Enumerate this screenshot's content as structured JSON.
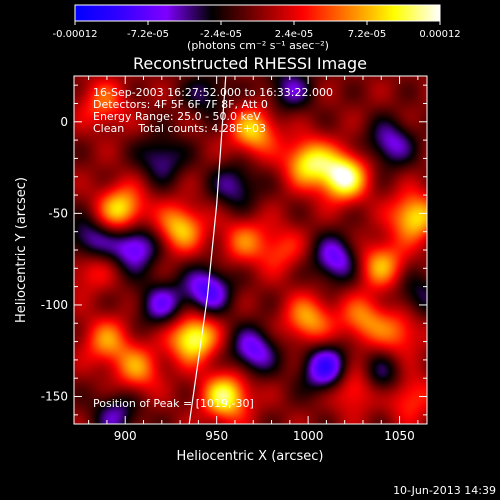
{
  "chart_data": {
    "type": "heatmap",
    "title": "Reconstructed RHESSI Image",
    "xlabel": "Heliocentric X (arcsec)",
    "ylabel": "Heliocentric Y (arcsec)",
    "xlim": [
      872,
      1065
    ],
    "ylim": [
      -165,
      25
    ],
    "x_ticks": [
      900,
      950,
      1000,
      1050
    ],
    "y_ticks": [
      0,
      -50,
      -100,
      -150
    ],
    "colorbar": {
      "label": "(photons cm⁻² s⁻¹ asec⁻²)",
      "ticks": [
        "-0.00012",
        "-7.2e-05",
        "-2.4e-05",
        "2.4e-05",
        "7.2e-05",
        "0.00012"
      ],
      "tick_values": [
        -0.00012,
        -7.2e-05,
        -2.4e-05,
        2.4e-05,
        7.2e-05,
        0.00012
      ],
      "range": [
        -0.00012,
        0.00012
      ],
      "colormap": [
        "#0000ff",
        "#3300ff",
        "#7f00ff",
        "#000000",
        "#7f0000",
        "#ff0000",
        "#ff8000",
        "#ffff00",
        "#ffffff"
      ]
    },
    "annotations": [
      "16-Sep-2003 16:27:52.000 to 16:33:22.000",
      "Detectors: 4F 5F 6F 7F 8F, Att 0",
      "Energy Range: 25.0 - 50.0 keV",
      "Clean    Total counts: 4.28E+03"
    ],
    "peak_label": "Position of Peak = [1019,-30]",
    "peak": [
      1019,
      -30
    ],
    "sources": [
      {
        "x": 1019,
        "y": -30,
        "value": 0.00012
      },
      {
        "x": 1000,
        "y": -22,
        "value": 9e-05
      },
      {
        "x": 970,
        "y": -5,
        "value": 8e-05
      },
      {
        "x": 888,
        "y": 10,
        "value": 5e-05
      },
      {
        "x": 898,
        "y": -48,
        "value": 9e-05
      },
      {
        "x": 930,
        "y": -58,
        "value": 8e-05
      },
      {
        "x": 965,
        "y": -65,
        "value": 5e-05
      },
      {
        "x": 1040,
        "y": -78,
        "value": 7e-05
      },
      {
        "x": 1058,
        "y": -52,
        "value": 9e-05
      },
      {
        "x": 1000,
        "y": -108,
        "value": 7e-05
      },
      {
        "x": 1030,
        "y": -108,
        "value": 6e-05
      },
      {
        "x": 1050,
        "y": -115,
        "value": 5e-05
      },
      {
        "x": 937,
        "y": -118,
        "value": 0.00011
      },
      {
        "x": 890,
        "y": -120,
        "value": 6e-05
      },
      {
        "x": 907,
        "y": -135,
        "value": 6e-05
      },
      {
        "x": 955,
        "y": -150,
        "value": 0.0001
      },
      {
        "x": 1025,
        "y": -145,
        "value": 6e-05
      },
      {
        "x": 1055,
        "y": -150,
        "value": 5e-05
      },
      {
        "x": 880,
        "y": -80,
        "value": 4e-05
      },
      {
        "x": 985,
        "y": -70,
        "value": 4e-05
      },
      {
        "x": 880,
        "y": -65,
        "value": -6e-05
      },
      {
        "x": 905,
        "y": -68,
        "value": -8e-05
      },
      {
        "x": 920,
        "y": -20,
        "value": -5e-05
      },
      {
        "x": 945,
        "y": 15,
        "value": -4e-05
      },
      {
        "x": 960,
        "y": -35,
        "value": -5e-05
      },
      {
        "x": 1045,
        "y": -12,
        "value": -6e-05
      },
      {
        "x": 1015,
        "y": -75,
        "value": -7e-05
      },
      {
        "x": 970,
        "y": -125,
        "value": -7e-05
      },
      {
        "x": 1010,
        "y": -135,
        "value": -9e-05
      },
      {
        "x": 1040,
        "y": -140,
        "value": -5e-05
      },
      {
        "x": 920,
        "y": -100,
        "value": -6e-05
      },
      {
        "x": 945,
        "y": -92,
        "value": -8e-05
      },
      {
        "x": 895,
        "y": -160,
        "value": -5e-05
      },
      {
        "x": 1060,
        "y": -95,
        "value": -4e-05
      },
      {
        "x": 990,
        "y": 18,
        "value": -5e-05
      }
    ],
    "limb": [
      [
        955,
        25
      ],
      [
        950,
        -45
      ],
      [
        945,
        -95
      ],
      [
        935,
        -165
      ]
    ],
    "footer": "10-Jun-2013 14:39"
  }
}
